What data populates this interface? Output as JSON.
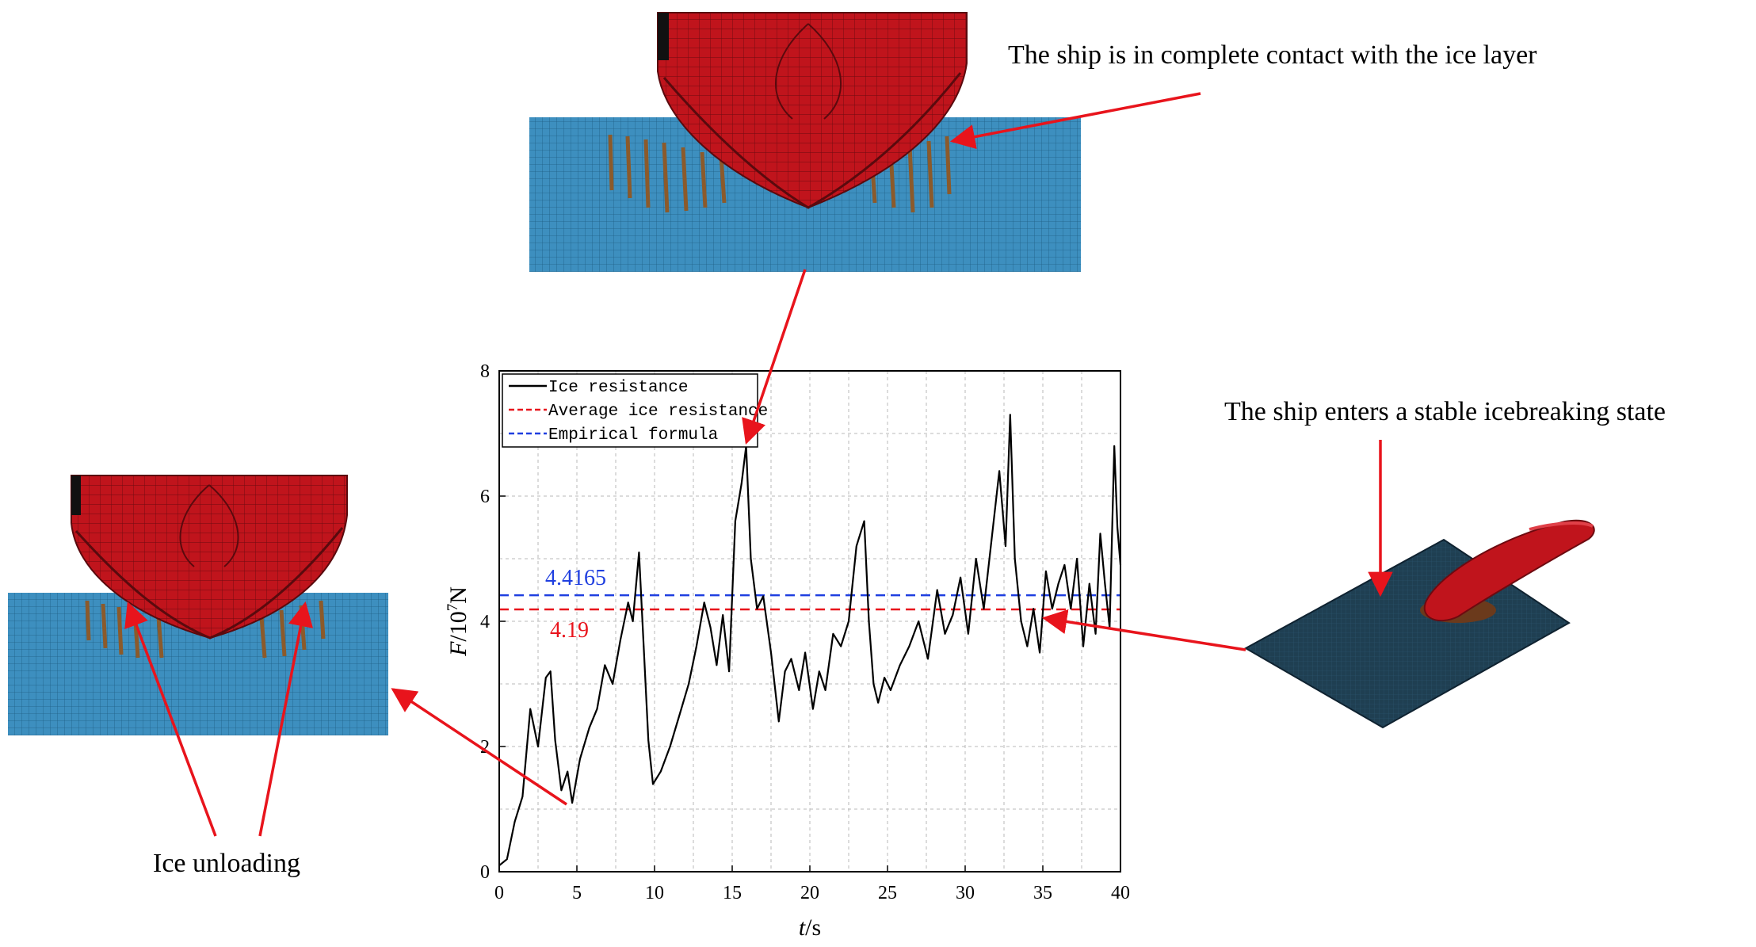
{
  "annotations": {
    "top": "The ship is in complete contact with the ice layer",
    "right": "The ship enters a stable icebreaking state",
    "left": "Ice unloading"
  },
  "colors": {
    "hull": "#c0141c",
    "hull_mesh": "#6d0a10",
    "ice": "#3d8fbf",
    "ice_mesh": "#1f5f85",
    "ice_debris": "#8b5a2b",
    "plate": "#1f3f52",
    "arrow": "#e8141c",
    "line": "#000000",
    "avg": "#e8141c",
    "empirical": "#1f3fe0"
  },
  "chart_data": {
    "type": "line",
    "title": "",
    "xlabel": "t/s",
    "ylabel": "F/10^7N",
    "xlim": [
      0,
      40
    ],
    "ylim": [
      0,
      8
    ],
    "xticks": [
      0,
      5,
      10,
      15,
      20,
      25,
      30,
      35,
      40
    ],
    "yticks": [
      0,
      2,
      4,
      6,
      8
    ],
    "grid": true,
    "legend_position": "top-left",
    "series": [
      {
        "name": "Ice resistance",
        "style": "solid",
        "x": [
          0,
          0.5,
          1.0,
          1.5,
          2.0,
          2.5,
          3.0,
          3.3,
          3.6,
          4.0,
          4.4,
          4.7,
          5.2,
          5.8,
          6.3,
          6.8,
          7.3,
          7.8,
          8.3,
          8.6,
          9.0,
          9.3,
          9.6,
          9.9,
          10.4,
          11.0,
          11.6,
          12.2,
          12.7,
          13.2,
          13.6,
          14.0,
          14.4,
          14.8,
          15.2,
          15.6,
          15.9,
          16.2,
          16.6,
          17.0,
          17.5,
          18.0,
          18.4,
          18.8,
          19.3,
          19.7,
          20.2,
          20.6,
          21.0,
          21.5,
          22.0,
          22.5,
          23.0,
          23.5,
          23.8,
          24.1,
          24.4,
          24.8,
          25.2,
          25.8,
          26.4,
          27.0,
          27.6,
          28.2,
          28.7,
          29.2,
          29.7,
          30.2,
          30.7,
          31.2,
          31.7,
          32.2,
          32.6,
          32.9,
          33.2,
          33.6,
          34.0,
          34.4,
          34.8,
          35.2,
          35.6,
          36.0,
          36.4,
          36.8,
          37.2,
          37.6,
          38.0,
          38.4,
          38.7,
          39.0,
          39.3,
          39.6,
          39.8,
          40.0
        ],
        "y": [
          0.1,
          0.2,
          0.8,
          1.2,
          2.6,
          2.0,
          3.1,
          3.2,
          2.1,
          1.3,
          1.6,
          1.1,
          1.8,
          2.3,
          2.6,
          3.3,
          3.0,
          3.7,
          4.3,
          4.0,
          5.1,
          3.6,
          2.1,
          1.4,
          1.6,
          2.0,
          2.5,
          3.0,
          3.6,
          4.3,
          3.9,
          3.3,
          4.1,
          3.2,
          5.6,
          6.2,
          6.8,
          5.0,
          4.2,
          4.4,
          3.5,
          2.4,
          3.2,
          3.4,
          2.9,
          3.5,
          2.6,
          3.2,
          2.9,
          3.8,
          3.6,
          4.0,
          5.2,
          5.6,
          4.0,
          3.0,
          2.7,
          3.1,
          2.9,
          3.3,
          3.6,
          4.0,
          3.4,
          4.5,
          3.8,
          4.1,
          4.7,
          3.8,
          5.0,
          4.2,
          5.3,
          6.4,
          5.2,
          7.3,
          5.0,
          4.0,
          3.6,
          4.2,
          3.5,
          4.8,
          4.2,
          4.6,
          4.9,
          4.2,
          5.0,
          3.6,
          4.6,
          3.8,
          5.4,
          4.6,
          3.9,
          6.8,
          5.5,
          4.9
        ]
      },
      {
        "name": "Average ice resistance",
        "style": "dashed",
        "value": 4.19,
        "label": "4.19"
      },
      {
        "name": "Empirical formula",
        "style": "dashed",
        "value": 4.4165,
        "label": "4.4165"
      }
    ]
  }
}
